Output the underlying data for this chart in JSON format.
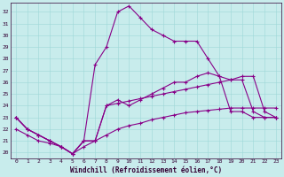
{
  "bg_color": "#c8ecec",
  "grid_color": "#9dd8d8",
  "line_color": "#880088",
  "spine_color": "#330033",
  "xlabel": "Windchill (Refroidissement éolien,°C)",
  "ylim_low": 19.5,
  "ylim_high": 32.8,
  "xlim_low": -0.5,
  "xlim_high": 23.5,
  "yticks": [
    20,
    21,
    22,
    23,
    24,
    25,
    26,
    27,
    28,
    29,
    30,
    31,
    32
  ],
  "xtick_labels": [
    "0",
    "1",
    "2",
    "3",
    "4",
    "5",
    "6",
    "7",
    "8",
    "9",
    "10",
    "11",
    "12",
    "13",
    "14",
    "15",
    "16",
    "17",
    "18",
    "19",
    "20",
    "21",
    "22",
    "23"
  ],
  "line1_x": [
    0,
    1,
    2,
    3,
    4,
    5,
    6,
    7,
    8,
    9,
    10,
    11,
    12,
    13,
    14,
    15,
    16,
    17,
    18,
    19,
    20,
    21,
    22,
    23
  ],
  "line1_y": [
    23.0,
    22.0,
    21.5,
    21.0,
    20.5,
    19.9,
    21.0,
    27.5,
    29.0,
    32.0,
    32.5,
    31.5,
    30.5,
    30.0,
    29.5,
    29.5,
    29.5,
    28.0,
    26.5,
    23.5,
    23.5,
    23.0,
    23.0,
    23.0
  ],
  "line2_x": [
    0,
    1,
    2,
    3,
    4,
    5,
    6,
    7,
    8,
    9,
    10,
    11,
    12,
    13,
    14,
    15,
    16,
    17,
    18,
    19,
    20,
    21,
    22,
    23
  ],
  "line2_y": [
    23.0,
    22.0,
    21.5,
    21.0,
    20.5,
    19.9,
    21.0,
    21.0,
    24.0,
    24.5,
    24.0,
    24.5,
    25.0,
    25.5,
    26.0,
    26.0,
    26.5,
    26.8,
    26.5,
    26.2,
    26.2,
    23.5,
    23.0,
    23.0
  ],
  "line3_x": [
    0,
    1,
    2,
    3,
    4,
    5,
    6,
    7,
    8,
    9,
    10,
    11,
    12,
    13,
    14,
    15,
    16,
    17,
    18,
    19,
    20,
    21,
    22,
    23
  ],
  "line3_y": [
    22.0,
    21.5,
    21.0,
    20.8,
    20.5,
    19.9,
    20.5,
    21.0,
    21.5,
    22.0,
    22.3,
    22.5,
    22.8,
    23.0,
    23.2,
    23.4,
    23.5,
    23.6,
    23.7,
    23.8,
    23.8,
    23.8,
    23.8,
    23.8
  ],
  "line4_x": [
    0,
    1,
    2,
    3,
    4,
    5,
    6,
    7,
    8,
    9,
    10,
    11,
    12,
    13,
    14,
    15,
    16,
    17,
    18,
    19,
    20,
    21,
    22,
    23
  ],
  "line4_y": [
    23.0,
    22.0,
    21.5,
    21.0,
    20.5,
    19.9,
    21.0,
    21.0,
    24.0,
    24.2,
    24.4,
    24.6,
    24.8,
    25.0,
    25.2,
    25.4,
    25.6,
    25.8,
    26.0,
    26.2,
    26.5,
    26.5,
    23.5,
    23.0
  ],
  "tick_fontsize": 4.5,
  "xlabel_fontsize": 5.5,
  "lw": 0.8,
  "ms": 2.5
}
